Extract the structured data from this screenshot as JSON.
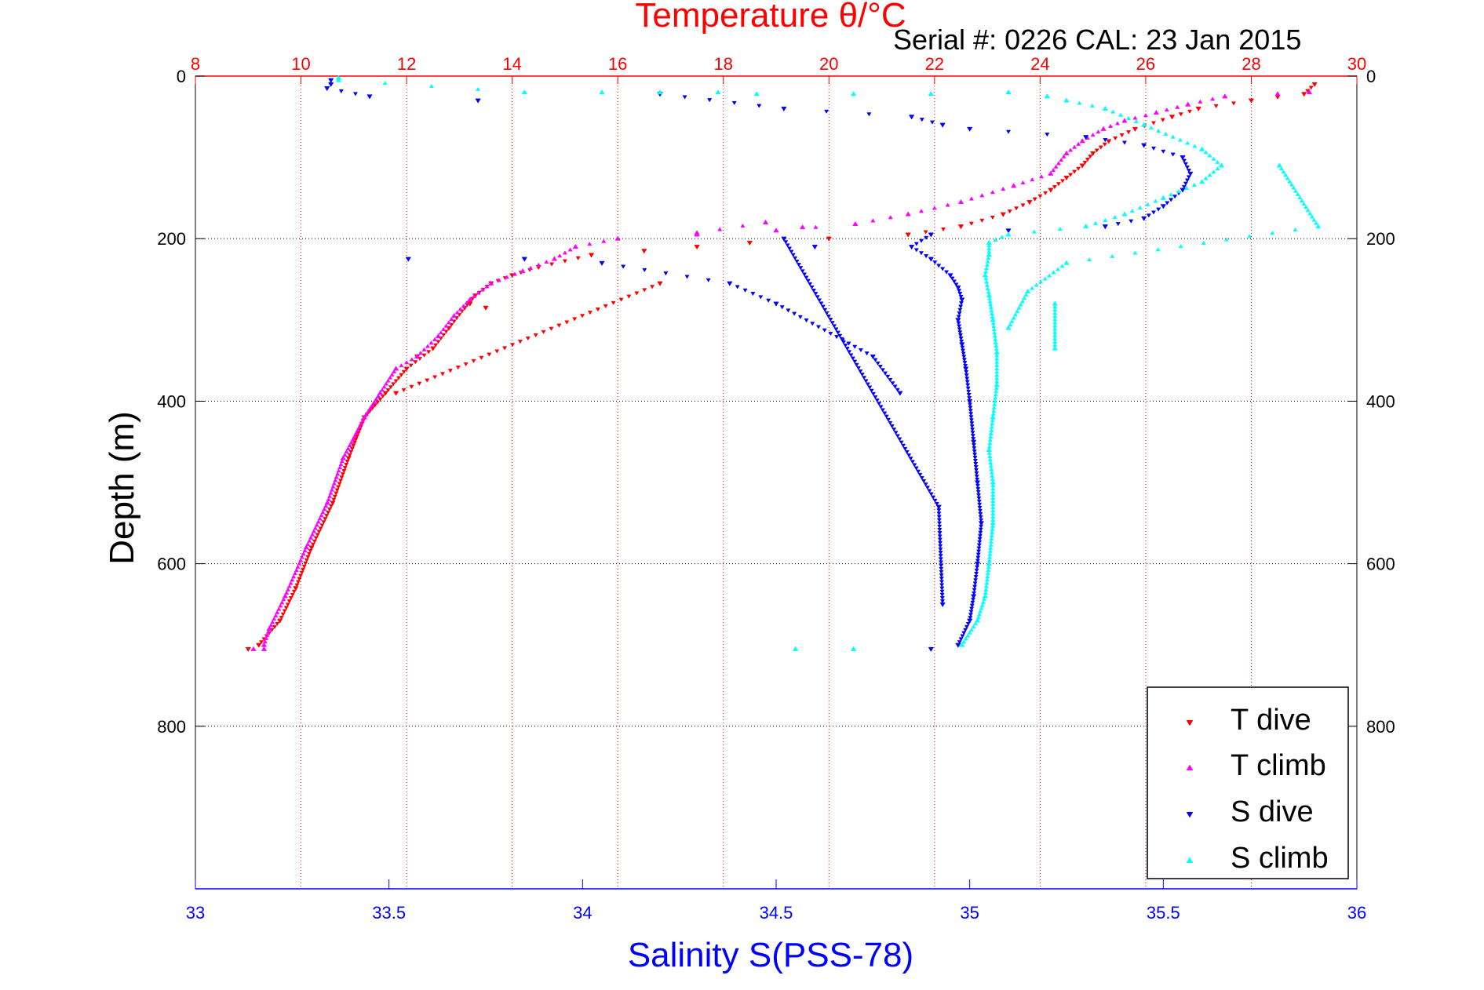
{
  "chart_data": {
    "type": "scatter",
    "title": "Temperature θ/°C",
    "subtitle": "Serial #: 0226  CAL: 23 Jan 2015",
    "ylabel": "Depth (m)",
    "xlabel_bottom": "Salinity S(PSS-78)",
    "xlabel_top": "Temperature θ/°C",
    "y_axis": {
      "reversed": true,
      "ylim": [
        0,
        1000
      ],
      "ticks": [
        "0",
        "200",
        "400",
        "600",
        "800"
      ]
    },
    "x_axis_top": {
      "xlim": [
        8,
        30
      ],
      "ticks": [
        "8",
        "10",
        "12",
        "14",
        "16",
        "18",
        "20",
        "22",
        "24",
        "26",
        "28",
        "30"
      ]
    },
    "x_axis_bottom": {
      "xlim": [
        33,
        36
      ],
      "ticks": [
        "33",
        "33.5",
        "34",
        "34.5",
        "35",
        "35.5",
        "36"
      ]
    },
    "grid": {
      "vertical": "top temperature ticks",
      "horizontal": "depth ticks"
    },
    "legend": {
      "placement": "bottom-right"
    },
    "series": [
      {
        "name": "T dive",
        "axis": "temperature",
        "color": "#ff0000",
        "marker": "triangle-down",
        "points": [
          [
            29.2,
            10
          ],
          [
            29.0,
            22
          ],
          [
            28.0,
            30
          ],
          [
            27.0,
            40
          ],
          [
            26.5,
            50
          ],
          [
            25.8,
            65
          ],
          [
            25.3,
            80
          ],
          [
            25.0,
            95
          ],
          [
            24.8,
            110
          ],
          [
            24.5,
            125
          ],
          [
            24.2,
            140
          ],
          [
            23.8,
            155
          ],
          [
            23.3,
            170
          ],
          [
            22.5,
            185
          ],
          [
            21.5,
            195
          ],
          [
            20.0,
            200
          ],
          [
            18.5,
            205
          ],
          [
            17.5,
            210
          ],
          [
            16.5,
            215
          ],
          [
            15.5,
            220
          ],
          [
            14.5,
            235
          ],
          [
            14.0,
            245
          ],
          [
            13.6,
            255
          ],
          [
            13.3,
            270
          ],
          [
            13.1,
            285
          ],
          [
            12.8,
            310
          ],
          [
            12.5,
            335
          ],
          [
            12.0,
            360
          ],
          [
            11.6,
            390
          ],
          [
            11.2,
            420
          ],
          [
            10.9,
            470
          ],
          [
            10.6,
            525
          ],
          [
            10.2,
            580
          ],
          [
            9.9,
            630
          ],
          [
            9.6,
            670
          ],
          [
            9.2,
            700
          ],
          [
            9.0,
            705
          ],
          [
            13.2,
            280
          ],
          [
            13.5,
            285
          ],
          [
            16.8,
            255
          ],
          [
            11.8,
            390
          ],
          [
            12.2,
            345
          ]
        ]
      },
      {
        "name": "T climb",
        "axis": "temperature",
        "color": "#ff00ff",
        "marker": "triangle-up",
        "points": [
          [
            29.1,
            20
          ],
          [
            28.5,
            22
          ],
          [
            27.5,
            25
          ],
          [
            26.8,
            35
          ],
          [
            26.2,
            45
          ],
          [
            25.6,
            55
          ],
          [
            25.2,
            65
          ],
          [
            24.8,
            80
          ],
          [
            24.5,
            95
          ],
          [
            24.2,
            120
          ],
          [
            23.5,
            135
          ],
          [
            22.5,
            155
          ],
          [
            21.5,
            170
          ],
          [
            20.5,
            182
          ],
          [
            19.0,
            190
          ],
          [
            17.5,
            195
          ],
          [
            16.0,
            200
          ],
          [
            15.2,
            210
          ],
          [
            14.8,
            225
          ],
          [
            14.2,
            240
          ],
          [
            13.6,
            255
          ],
          [
            13.2,
            275
          ],
          [
            12.9,
            295
          ],
          [
            12.6,
            320
          ],
          [
            12.2,
            345
          ],
          [
            11.8,
            360
          ],
          [
            11.5,
            390
          ],
          [
            11.2,
            420
          ],
          [
            10.8,
            470
          ],
          [
            10.5,
            525
          ],
          [
            10.1,
            580
          ],
          [
            9.7,
            640
          ],
          [
            9.4,
            680
          ],
          [
            9.3,
            700
          ],
          [
            9.1,
            705
          ],
          [
            9.3,
            705
          ],
          [
            18.8,
            180
          ],
          [
            17.5,
            193
          ],
          [
            19.5,
            186
          ]
        ]
      },
      {
        "name": "S dive",
        "axis": "salinity",
        "color": "#0000ff",
        "marker": "triangle-down",
        "points": [
          [
            33.35,
            5
          ],
          [
            33.35,
            10
          ],
          [
            33.34,
            15
          ],
          [
            33.45,
            25
          ],
          [
            33.73,
            30
          ],
          [
            34.2,
            22
          ],
          [
            34.52,
            40
          ],
          [
            34.85,
            50
          ],
          [
            34.93,
            60
          ],
          [
            35.0,
            65
          ],
          [
            35.3,
            75
          ],
          [
            35.45,
            85
          ],
          [
            35.55,
            100
          ],
          [
            35.57,
            120
          ],
          [
            35.55,
            140
          ],
          [
            35.5,
            160
          ],
          [
            35.45,
            175
          ],
          [
            35.35,
            185
          ],
          [
            35.1,
            190
          ],
          [
            34.9,
            195
          ],
          [
            34.85,
            210
          ],
          [
            34.9,
            225
          ],
          [
            34.95,
            245
          ],
          [
            34.97,
            260
          ],
          [
            34.98,
            275
          ],
          [
            34.97,
            300
          ],
          [
            34.98,
            330
          ],
          [
            34.99,
            360
          ],
          [
            35.0,
            400
          ],
          [
            35.01,
            450
          ],
          [
            35.02,
            500
          ],
          [
            35.03,
            550
          ],
          [
            35.02,
            600
          ],
          [
            35.01,
            640
          ],
          [
            35.0,
            670
          ],
          [
            34.97,
            700
          ],
          [
            34.9,
            705
          ],
          [
            33.85,
            225
          ],
          [
            34.05,
            230
          ],
          [
            34.38,
            255
          ],
          [
            34.5,
            280
          ],
          [
            34.75,
            345
          ],
          [
            34.82,
            390
          ],
          [
            34.6,
            210
          ],
          [
            34.52,
            200
          ],
          [
            34.92,
            530
          ],
          [
            34.93,
            650
          ],
          [
            33.55,
            225
          ]
        ]
      },
      {
        "name": "S climb",
        "axis": "salinity",
        "color": "#00ffff",
        "marker": "triangle-up",
        "points": [
          [
            33.37,
            2
          ],
          [
            33.37,
            5
          ],
          [
            33.85,
            20
          ],
          [
            34.05,
            20
          ],
          [
            34.2,
            20
          ],
          [
            34.35,
            20
          ],
          [
            34.45,
            22
          ],
          [
            34.7,
            22
          ],
          [
            34.9,
            22
          ],
          [
            35.1,
            20
          ],
          [
            35.2,
            25
          ],
          [
            35.25,
            30
          ],
          [
            35.35,
            40
          ],
          [
            35.45,
            60
          ],
          [
            35.6,
            90
          ],
          [
            35.65,
            110
          ],
          [
            35.6,
            130
          ],
          [
            35.5,
            150
          ],
          [
            35.4,
            170
          ],
          [
            35.3,
            185
          ],
          [
            35.1,
            195
          ],
          [
            35.05,
            205
          ],
          [
            35.05,
            220
          ],
          [
            35.04,
            245
          ],
          [
            35.05,
            270
          ],
          [
            35.06,
            300
          ],
          [
            35.07,
            340
          ],
          [
            35.07,
            380
          ],
          [
            35.06,
            420
          ],
          [
            35.05,
            460
          ],
          [
            35.06,
            500
          ],
          [
            35.06,
            550
          ],
          [
            35.05,
            600
          ],
          [
            35.04,
            640
          ],
          [
            35.02,
            670
          ],
          [
            34.98,
            700
          ],
          [
            34.7,
            705
          ],
          [
            34.55,
            705
          ],
          [
            35.22,
            280
          ],
          [
            35.22,
            335
          ],
          [
            35.8,
            110
          ],
          [
            35.9,
            185
          ],
          [
            35.25,
            230
          ],
          [
            35.15,
            265
          ],
          [
            35.1,
            310
          ]
        ]
      }
    ]
  }
}
